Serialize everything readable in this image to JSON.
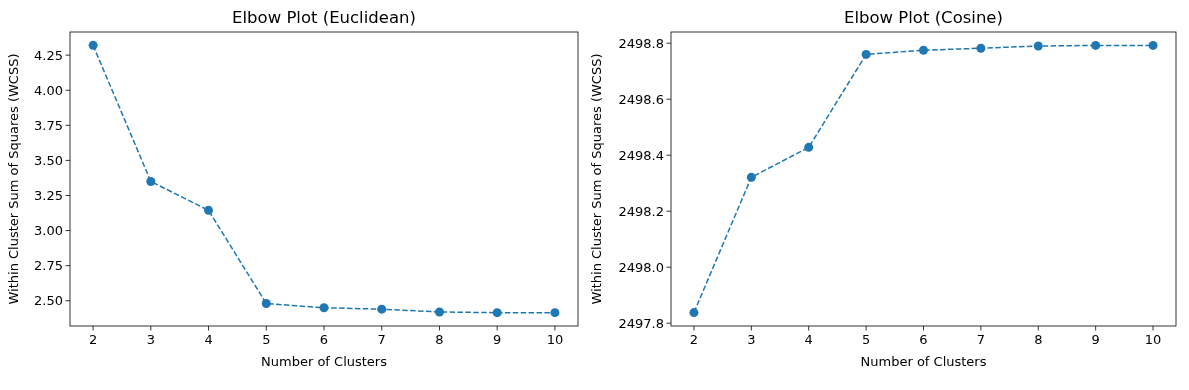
{
  "chart_data": [
    {
      "type": "line",
      "title": "Elbow Plot (Euclidean)",
      "xlabel": "Number of Clusters",
      "ylabel": "Within Cluster Sum of Squares (WCSS)",
      "x": [
        2,
        3,
        4,
        5,
        6,
        7,
        8,
        9,
        10
      ],
      "series": [
        {
          "color": "#1f77b4",
          "values": [
            4.32,
            3.35,
            3.144,
            2.48,
            2.45,
            2.44,
            2.42,
            2.415,
            2.415
          ]
        }
      ],
      "xlim": [
        1.6,
        10.4
      ],
      "xticks": [
        2,
        3,
        4,
        5,
        6,
        7,
        8,
        9,
        10
      ],
      "ylim": [
        2.32,
        4.415
      ],
      "yticks": [
        {
          "value": 2.5,
          "label": "2.50"
        },
        2.75,
        {
          "value": 3,
          "label": "3.00"
        },
        3.25,
        {
          "value": 3.5,
          "label": "3.50"
        },
        3.75,
        {
          "value": 4,
          "label": "4.00"
        },
        4.25
      ],
      "marker": "circle",
      "line_style": "dashed",
      "grid": false
    },
    {
      "type": "line",
      "title": "Elbow Plot (Cosine)",
      "xlabel": "Number of Clusters",
      "ylabel": "Within Cluster Sum of Squares (WCSS)",
      "x": [
        2,
        3,
        4,
        5,
        6,
        7,
        8,
        9,
        10
      ],
      "series": [
        {
          "color": "#1f77b4",
          "values": [
            2497.838,
            2498.321,
            2498.428,
            2498.76,
            2498.775,
            2498.782,
            2498.79,
            2498.792,
            2498.792
          ]
        }
      ],
      "xlim": [
        1.6,
        10.4
      ],
      "xticks": [
        2,
        3,
        4,
        5,
        6,
        7,
        8,
        9,
        10
      ],
      "ylim": [
        2497.79,
        2498.84
      ],
      "yticks": [
        2497.8,
        {
          "value": 2498,
          "label": "2498.0"
        },
        2498.2,
        2498.4,
        2498.6,
        2498.8
      ],
      "marker": "circle",
      "line_style": "dashed",
      "grid": false
    }
  ]
}
